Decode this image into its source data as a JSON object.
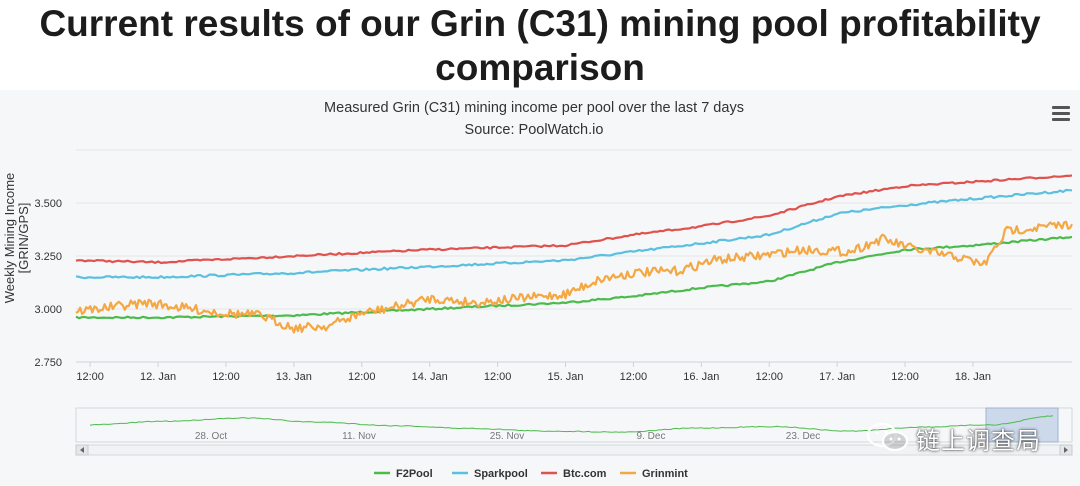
{
  "headline": "Current results of our Grin (C31) mining pool profitability comparison",
  "chart_data": {
    "type": "line",
    "title": "Measured Grin (C31) mining income per pool over the last 7 days",
    "subtitle": "Source: PoolWatch.io",
    "xlabel": "",
    "ylabel": "Weekly Mining Income [GRIN/GPS]",
    "ylim": [
      2.75,
      3.75
    ],
    "yticks": [
      "2.750",
      "3.000",
      "3.250",
      "3.500"
    ],
    "xlim": [
      "2019-01-11T09:30",
      "2019-01-18T17:30"
    ],
    "xticks": [
      "12:00",
      "12. Jan",
      "12:00",
      "13. Jan",
      "12:00",
      "14. Jan",
      "12:00",
      "15. Jan",
      "12:00",
      "16. Jan",
      "12:00",
      "17. Jan",
      "12:00",
      "18. Jan"
    ],
    "grid": true,
    "legend": "bottom",
    "series": [
      {
        "name": "F2Pool",
        "color": "#4cbb4c",
        "x": [
          "2019-01-11T09:30",
          "2019-01-12T00:00",
          "2019-01-13T00:00",
          "2019-01-14T00:00",
          "2019-01-15T00:00",
          "2019-01-15T12:00",
          "2019-01-16T00:00",
          "2019-01-16T12:00",
          "2019-01-17T00:00",
          "2019-01-17T12:00",
          "2019-01-18T00:00",
          "2019-01-18T17:30"
        ],
        "y": [
          2.96,
          2.96,
          2.97,
          3.0,
          3.03,
          3.06,
          3.1,
          3.13,
          3.22,
          3.28,
          3.3,
          3.34
        ]
      },
      {
        "name": "Sparkpool",
        "color": "#5bc0de",
        "x": [
          "2019-01-11T09:30",
          "2019-01-12T00:00",
          "2019-01-13T00:00",
          "2019-01-14T00:00",
          "2019-01-15T00:00",
          "2019-01-15T12:00",
          "2019-01-16T00:00",
          "2019-01-16T12:00",
          "2019-01-17T00:00",
          "2019-01-17T12:00",
          "2019-01-18T00:00",
          "2019-01-18T17:30"
        ],
        "y": [
          3.15,
          3.15,
          3.17,
          3.2,
          3.23,
          3.27,
          3.31,
          3.35,
          3.45,
          3.49,
          3.52,
          3.56
        ]
      },
      {
        "name": "Btc.com",
        "color": "#e0524d",
        "x": [
          "2019-01-11T09:30",
          "2019-01-12T00:00",
          "2019-01-13T00:00",
          "2019-01-14T00:00",
          "2019-01-15T00:00",
          "2019-01-15T12:00",
          "2019-01-16T00:00",
          "2019-01-16T12:00",
          "2019-01-17T00:00",
          "2019-01-17T12:00",
          "2019-01-18T00:00",
          "2019-01-18T17:30"
        ],
        "y": [
          3.23,
          3.22,
          3.25,
          3.28,
          3.3,
          3.35,
          3.39,
          3.44,
          3.53,
          3.58,
          3.6,
          3.63
        ]
      },
      {
        "name": "Grinmint",
        "color": "#f4a742",
        "x": [
          "2019-01-11T09:30",
          "2019-01-11T16:00",
          "2019-01-11T22:00",
          "2019-01-12T06:00",
          "2019-01-12T12:00",
          "2019-01-12T18:00",
          "2019-01-13T00:00",
          "2019-01-13T06:00",
          "2019-01-13T12:00",
          "2019-01-13T18:00",
          "2019-01-14T00:00",
          "2019-01-14T08:00",
          "2019-01-14T16:00",
          "2019-01-15T00:00",
          "2019-01-15T06:00",
          "2019-01-15T12:00",
          "2019-01-15T20:00",
          "2019-01-16T02:00",
          "2019-01-16T10:00",
          "2019-01-16T18:00",
          "2019-01-17T02:00",
          "2019-01-17T08:00",
          "2019-01-17T14:00",
          "2019-01-17T22:00",
          "2019-01-18T02:00",
          "2019-01-18T06:00",
          "2019-01-18T17:30"
        ],
        "y": [
          2.99,
          3.01,
          3.03,
          3.0,
          2.98,
          2.97,
          2.91,
          2.92,
          2.98,
          3.01,
          3.05,
          3.03,
          3.05,
          3.07,
          3.14,
          3.17,
          3.18,
          3.23,
          3.25,
          3.28,
          3.27,
          3.33,
          3.28,
          3.24,
          3.21,
          3.37,
          3.4
        ]
      }
    ],
    "navigator": {
      "xticks": [
        "28. Oct",
        "11. Nov",
        "25. Nov",
        "9. Dec",
        "23. Dec"
      ],
      "series": [
        {
          "name": "",
          "color": "#4cbb4c",
          "x": [
            "2018-10-21",
            "2018-10-28",
            "2018-11-04",
            "2018-11-11",
            "2018-11-18",
            "2018-11-25",
            "2018-12-02",
            "2018-12-09",
            "2018-12-16",
            "2018-12-23",
            "2018-12-30",
            "2019-01-06",
            "2019-01-12",
            "2019-01-18"
          ],
          "y": [
            0.4,
            0.6,
            0.78,
            0.55,
            0.35,
            0.2,
            0.05,
            0.0,
            0.22,
            0.3,
            0.05,
            0.28,
            0.4,
            0.9
          ]
        }
      ]
    }
  },
  "legend": {
    "items": [
      {
        "label": "F2Pool",
        "color": "#4cbb4c"
      },
      {
        "label": "Sparkpool",
        "color": "#5bc0de"
      },
      {
        "label": "Btc.com",
        "color": "#e0524d"
      },
      {
        "label": "Grinmint",
        "color": "#f4a742"
      }
    ]
  },
  "menu": {
    "icon": "hamburger-menu-icon"
  },
  "watermark": {
    "text": "链上调查局",
    "icon": "wechat-icon"
  }
}
